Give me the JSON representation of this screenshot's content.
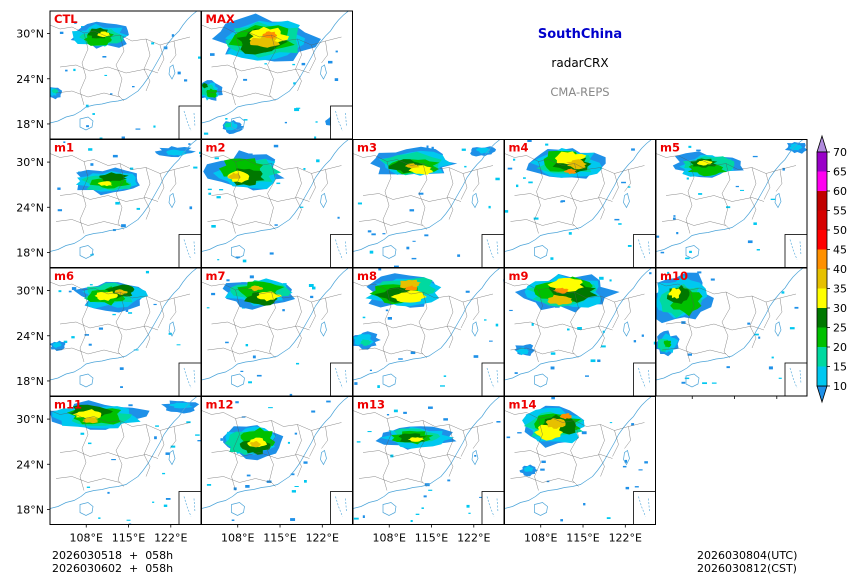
{
  "header": {
    "region": "SouthChina",
    "variable": "radarCRX",
    "model": "CMA-REPS"
  },
  "footer": {
    "left_line1": "2026030518  +  058h",
    "left_line2": "2026030602  +  058h",
    "right_line1": "2026030804(UTC)",
    "right_line2": "2026030812(CST)"
  },
  "colors": {
    "region_title": "#0000cc",
    "member_label": "#ee0000",
    "coast": "#4aa3d8",
    "border": "#555555"
  },
  "chart_data": {
    "type": "heatmap",
    "description_variable": "radarCRX",
    "panels": [
      {
        "label": "CTL",
        "row": 0,
        "col": 0
      },
      {
        "label": "MAX",
        "row": 0,
        "col": 1
      },
      {
        "label": "m1",
        "row": 1,
        "col": 0
      },
      {
        "label": "m2",
        "row": 1,
        "col": 1
      },
      {
        "label": "m3",
        "row": 1,
        "col": 2
      },
      {
        "label": "m4",
        "row": 1,
        "col": 3
      },
      {
        "label": "m5",
        "row": 1,
        "col": 4
      },
      {
        "label": "m6",
        "row": 2,
        "col": 0
      },
      {
        "label": "m7",
        "row": 2,
        "col": 1
      },
      {
        "label": "m8",
        "row": 2,
        "col": 2
      },
      {
        "label": "m9",
        "row": 2,
        "col": 3
      },
      {
        "label": "m10",
        "row": 2,
        "col": 4
      },
      {
        "label": "m11",
        "row": 3,
        "col": 0
      },
      {
        "label": "m12",
        "row": 3,
        "col": 1
      },
      {
        "label": "m13",
        "row": 3,
        "col": 2
      },
      {
        "label": "m14",
        "row": 3,
        "col": 3
      }
    ],
    "x_ticks": [
      108,
      115,
      122
    ],
    "x_tick_labels": [
      "108°E",
      "115°E",
      "122°E"
    ],
    "y_ticks": [
      30,
      24,
      18
    ],
    "y_tick_labels": [
      "30°N",
      "24°N",
      "18°N"
    ],
    "lon_range": [
      102,
      127
    ],
    "lat_range": [
      16,
      33
    ],
    "colorbar": {
      "levels": [
        10,
        15,
        20,
        25,
        30,
        35,
        40,
        45,
        50,
        55,
        60,
        65,
        70
      ],
      "labels": [
        "10",
        "15",
        "20",
        "25",
        "30",
        "35",
        "40",
        "45",
        "50",
        "55",
        "60",
        "65",
        "70"
      ],
      "colors": [
        "#1e90e8",
        "#00c8f0",
        "#00d9a0",
        "#00c000",
        "#007800",
        "#ffff00",
        "#e6c000",
        "#ff9000",
        "#ff0000",
        "#d60000",
        "#c00000",
        "#ff00f0",
        "#9900c8",
        "#b08adc"
      ],
      "extend": "both"
    }
  }
}
